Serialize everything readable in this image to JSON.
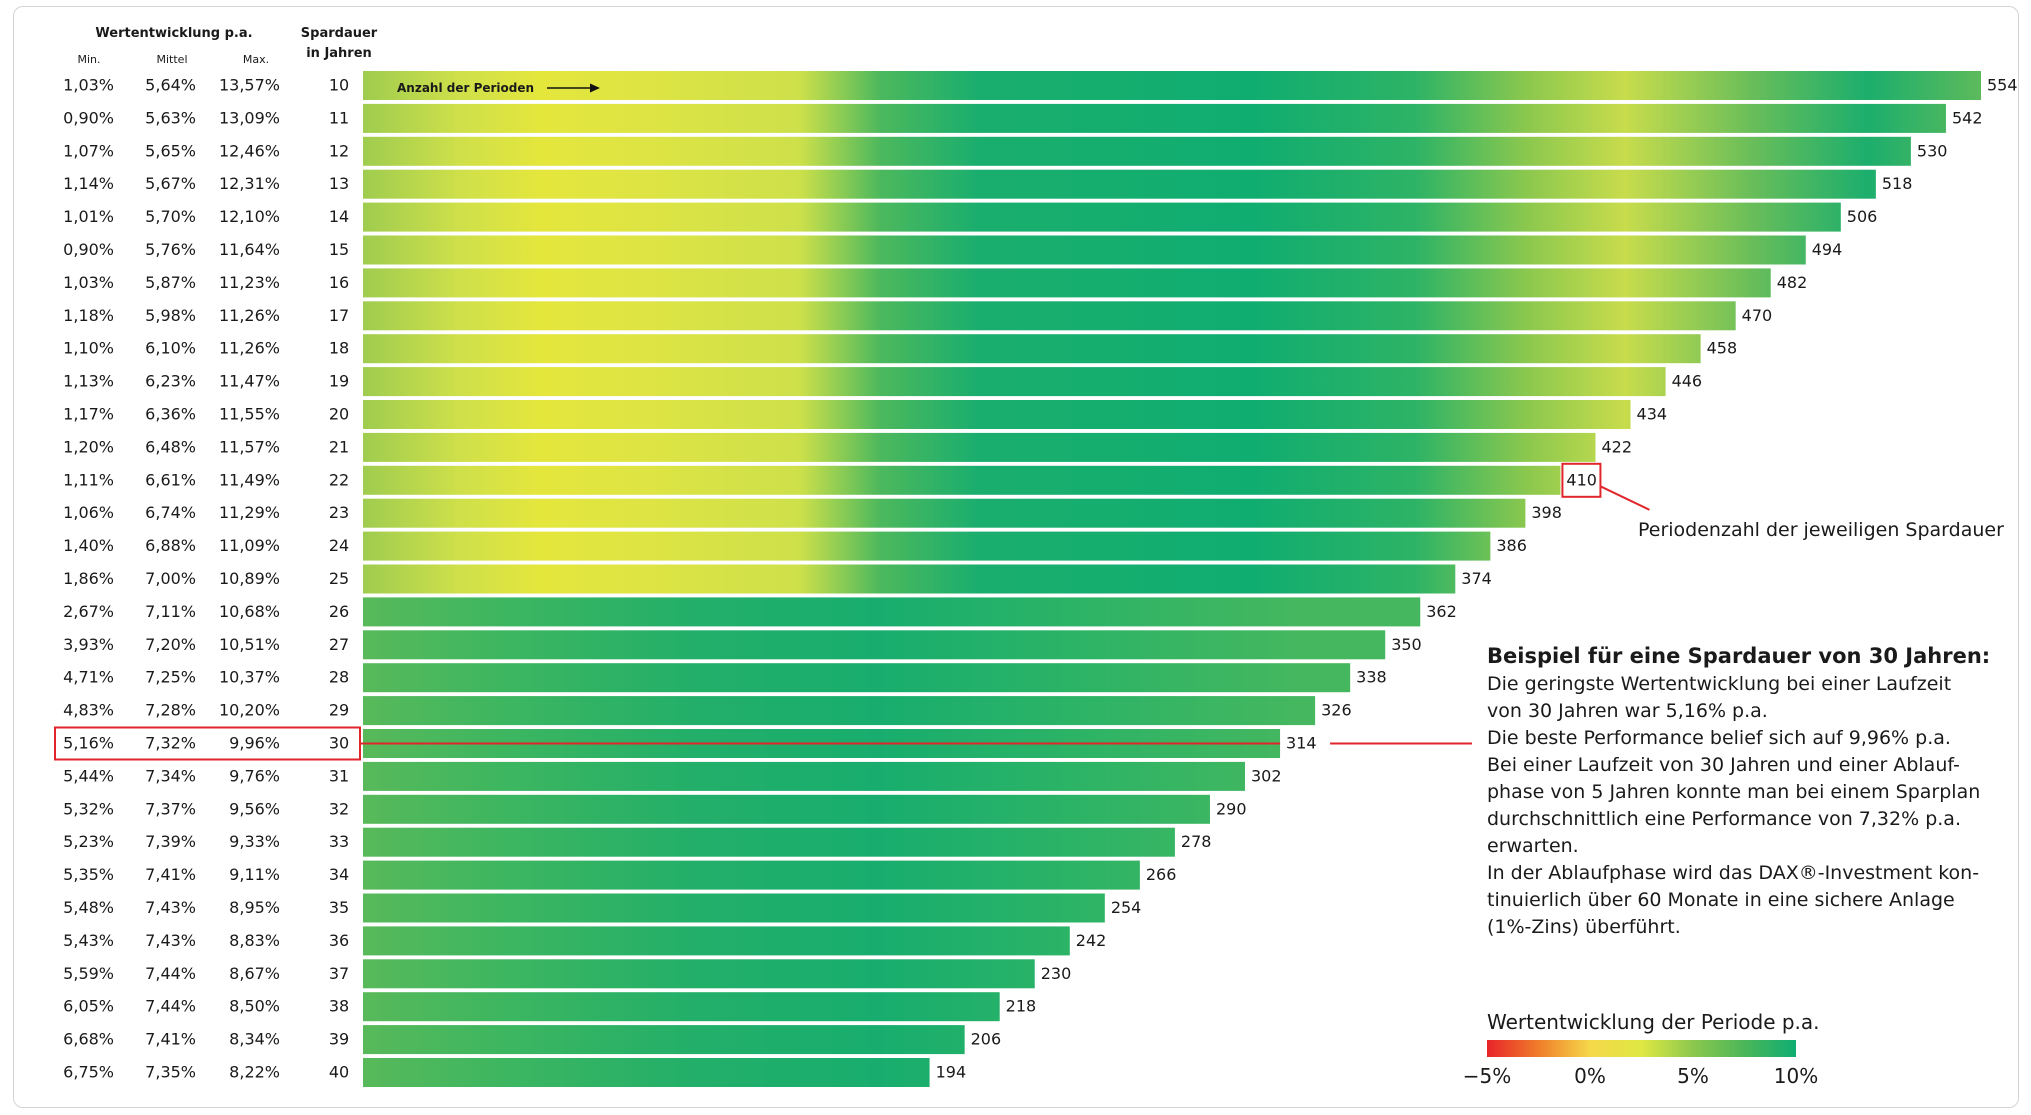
{
  "header": {
    "group_title": "Wertentwicklung p.a.",
    "col_min": "Min.",
    "col_mid": "Mittel",
    "col_max": "Max.",
    "duration_title_1": "Spardauer",
    "duration_title_2": "in Jahren",
    "periods_label": "Anzahl der Perioden"
  },
  "chart_data": {
    "type": "heatmap",
    "title": "",
    "xlabel": "Anzahl der Perioden",
    "ylabel": "Spardauer in Jahren",
    "rows": [
      {
        "years": "10",
        "min": "1,03%",
        "mid": "5,64%",
        "max": "13,57%",
        "periods": 554
      },
      {
        "years": "11",
        "min": "0,90%",
        "mid": "5,63%",
        "max": "13,09%",
        "periods": 542
      },
      {
        "years": "12",
        "min": "1,07%",
        "mid": "5,65%",
        "max": "12,46%",
        "periods": 530
      },
      {
        "years": "13",
        "min": "1,14%",
        "mid": "5,67%",
        "max": "12,31%",
        "periods": 518
      },
      {
        "years": "14",
        "min": "1,01%",
        "mid": "5,70%",
        "max": "12,10%",
        "periods": 506
      },
      {
        "years": "15",
        "min": "0,90%",
        "mid": "5,76%",
        "max": "11,64%",
        "periods": 494
      },
      {
        "years": "16",
        "min": "1,03%",
        "mid": "5,87%",
        "max": "11,23%",
        "periods": 482
      },
      {
        "years": "17",
        "min": "1,18%",
        "mid": "5,98%",
        "max": "11,26%",
        "periods": 470
      },
      {
        "years": "18",
        "min": "1,10%",
        "mid": "6,10%",
        "max": "11,26%",
        "periods": 458
      },
      {
        "years": "19",
        "min": "1,13%",
        "mid": "6,23%",
        "max": "11,47%",
        "periods": 446
      },
      {
        "years": "20",
        "min": "1,17%",
        "mid": "6,36%",
        "max": "11,55%",
        "periods": 434
      },
      {
        "years": "21",
        "min": "1,20%",
        "mid": "6,48%",
        "max": "11,57%",
        "periods": 422
      },
      {
        "years": "22",
        "min": "1,11%",
        "mid": "6,61%",
        "max": "11,49%",
        "periods": 410
      },
      {
        "years": "23",
        "min": "1,06%",
        "mid": "6,74%",
        "max": "11,29%",
        "periods": 398
      },
      {
        "years": "24",
        "min": "1,40%",
        "mid": "6,88%",
        "max": "11,09%",
        "periods": 386
      },
      {
        "years": "25",
        "min": "1,86%",
        "mid": "7,00%",
        "max": "10,89%",
        "periods": 374
      },
      {
        "years": "26",
        "min": "2,67%",
        "mid": "7,11%",
        "max": "10,68%",
        "periods": 362
      },
      {
        "years": "27",
        "min": "3,93%",
        "mid": "7,20%",
        "max": "10,51%",
        "periods": 350
      },
      {
        "years": "28",
        "min": "4,71%",
        "mid": "7,25%",
        "max": "10,37%",
        "periods": 338
      },
      {
        "years": "29",
        "min": "4,83%",
        "mid": "7,28%",
        "max": "10,20%",
        "periods": 326
      },
      {
        "years": "30",
        "min": "5,16%",
        "mid": "7,32%",
        "max": "9,96%",
        "periods": 314
      },
      {
        "years": "31",
        "min": "5,44%",
        "mid": "7,34%",
        "max": "9,76%",
        "periods": 302
      },
      {
        "years": "32",
        "min": "5,32%",
        "mid": "7,37%",
        "max": "9,56%",
        "periods": 290
      },
      {
        "years": "33",
        "min": "5,23%",
        "mid": "7,39%",
        "max": "9,33%",
        "periods": 278
      },
      {
        "years": "34",
        "min": "5,35%",
        "mid": "7,41%",
        "max": "9,11%",
        "periods": 266
      },
      {
        "years": "35",
        "min": "5,48%",
        "mid": "7,43%",
        "max": "8,95%",
        "periods": 254
      },
      {
        "years": "36",
        "min": "5,43%",
        "mid": "7,43%",
        "max": "8,83%",
        "periods": 242
      },
      {
        "years": "37",
        "min": "5,59%",
        "mid": "7,44%",
        "max": "8,67%",
        "periods": 230
      },
      {
        "years": "38",
        "min": "6,05%",
        "mid": "7,44%",
        "max": "8,50%",
        "periods": 218
      },
      {
        "years": "39",
        "min": "6,68%",
        "mid": "7,41%",
        "max": "8,34%",
        "periods": 206
      },
      {
        "years": "40",
        "min": "6,75%",
        "mid": "7,35%",
        "max": "8,22%",
        "periods": 194
      }
    ],
    "color_scale": {
      "title": "Wertentwicklung der Periode p.a.",
      "ticks": [
        "−5%",
        "0%",
        "5%",
        "10%"
      ],
      "range": [
        -5,
        10
      ],
      "colors": [
        "#e8232a",
        "#f07d2a",
        "#f5d84a",
        "#dfe842",
        "#8cc84e",
        "#4bb659",
        "#0fae72"
      ]
    },
    "highlight_row": "30",
    "highlight_period_row": "22"
  },
  "annotations": {
    "periods_callout": "Periodenzahl der jeweiligen Spardauer",
    "example_title": "Beispiel für eine Spardauer von 30 Jahren:",
    "example_lines": [
      "Die geringste Wertentwicklung bei einer Laufzeit",
      "von 30 Jahren war 5,16% p.a.",
      "Die beste Performance belief sich auf 9,96% p.a.",
      "Bei einer Laufzeit von 30 Jahren und einer Ablauf-",
      "phase von 5 Jahren konnte man bei einem Sparplan",
      "durchschnittlich eine Performance von 7,32% p.a.",
      "erwarten.",
      "In der Ablaufphase wird das DAX®-Investment kon-",
      "tinuierlich über 60 Monate in eine sichere Anlage",
      "(1%-Zins) überführt."
    ]
  }
}
